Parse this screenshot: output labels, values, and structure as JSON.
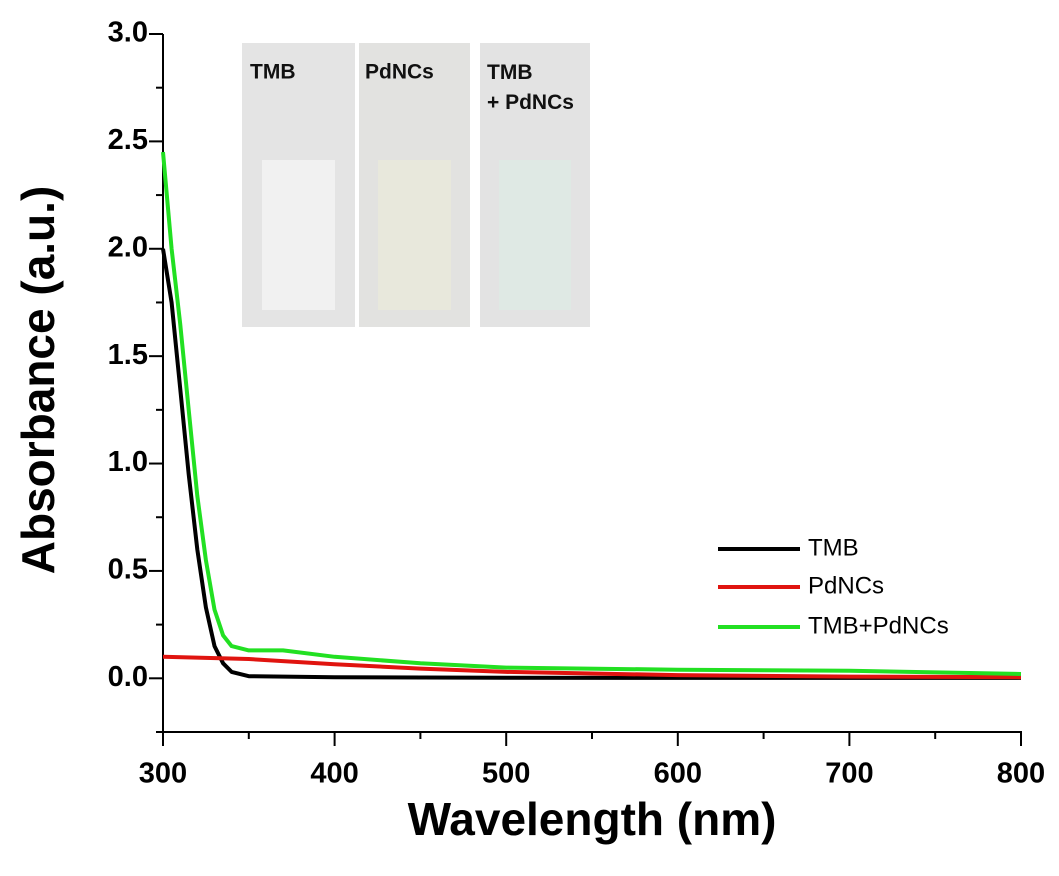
{
  "chart_data": {
    "type": "line",
    "x_label": "Wavelength (nm)",
    "y_label": "Absorbance (a.u.)",
    "xlim": [
      300,
      800
    ],
    "ylim": [
      -0.25,
      3.0
    ],
    "xticks": [
      300,
      400,
      500,
      600,
      700,
      800
    ],
    "yticks": [
      {
        "value": 0,
        "label": "0.0"
      },
      0.5,
      {
        "value": 1,
        "label": "1.0"
      },
      1.5,
      {
        "value": 2,
        "label": "2.0"
      },
      2.5,
      {
        "value": 3,
        "label": "3.0"
      }
    ],
    "xminorticks": [
      350,
      450,
      550,
      650,
      750
    ],
    "yminorticks": [
      -0.25,
      0.25,
      0.75,
      1.25,
      1.75,
      2.25,
      2.75
    ],
    "inset_labels": [
      "TMB",
      "PdNCs",
      "TMB\n+ PdNCs"
    ],
    "series": [
      {
        "name": "TMB",
        "color": "#000000",
        "x": [
          300,
          305,
          310,
          315,
          320,
          325,
          330,
          335,
          340,
          350,
          400,
          500,
          600,
          800
        ],
        "values": [
          2.0,
          1.75,
          1.35,
          0.95,
          0.6,
          0.33,
          0.15,
          0.07,
          0.03,
          0.01,
          0.005,
          0.003,
          0.002,
          0.002
        ]
      },
      {
        "name": "PdNCs",
        "color": "#e0140f",
        "x": [
          300,
          350,
          400,
          450,
          500,
          600,
          700,
          800
        ],
        "values": [
          0.1,
          0.09,
          0.065,
          0.045,
          0.03,
          0.015,
          0.008,
          0.005
        ]
      },
      {
        "name": "TMB+PdNCs",
        "color": "#22e022",
        "x": [
          300,
          305,
          310,
          315,
          320,
          325,
          330,
          335,
          340,
          350,
          370,
          400,
          450,
          500,
          600,
          700,
          800
        ],
        "values": [
          2.45,
          2.0,
          1.65,
          1.25,
          0.85,
          0.55,
          0.32,
          0.2,
          0.15,
          0.13,
          0.13,
          0.1,
          0.07,
          0.05,
          0.04,
          0.035,
          0.02
        ]
      }
    ]
  }
}
